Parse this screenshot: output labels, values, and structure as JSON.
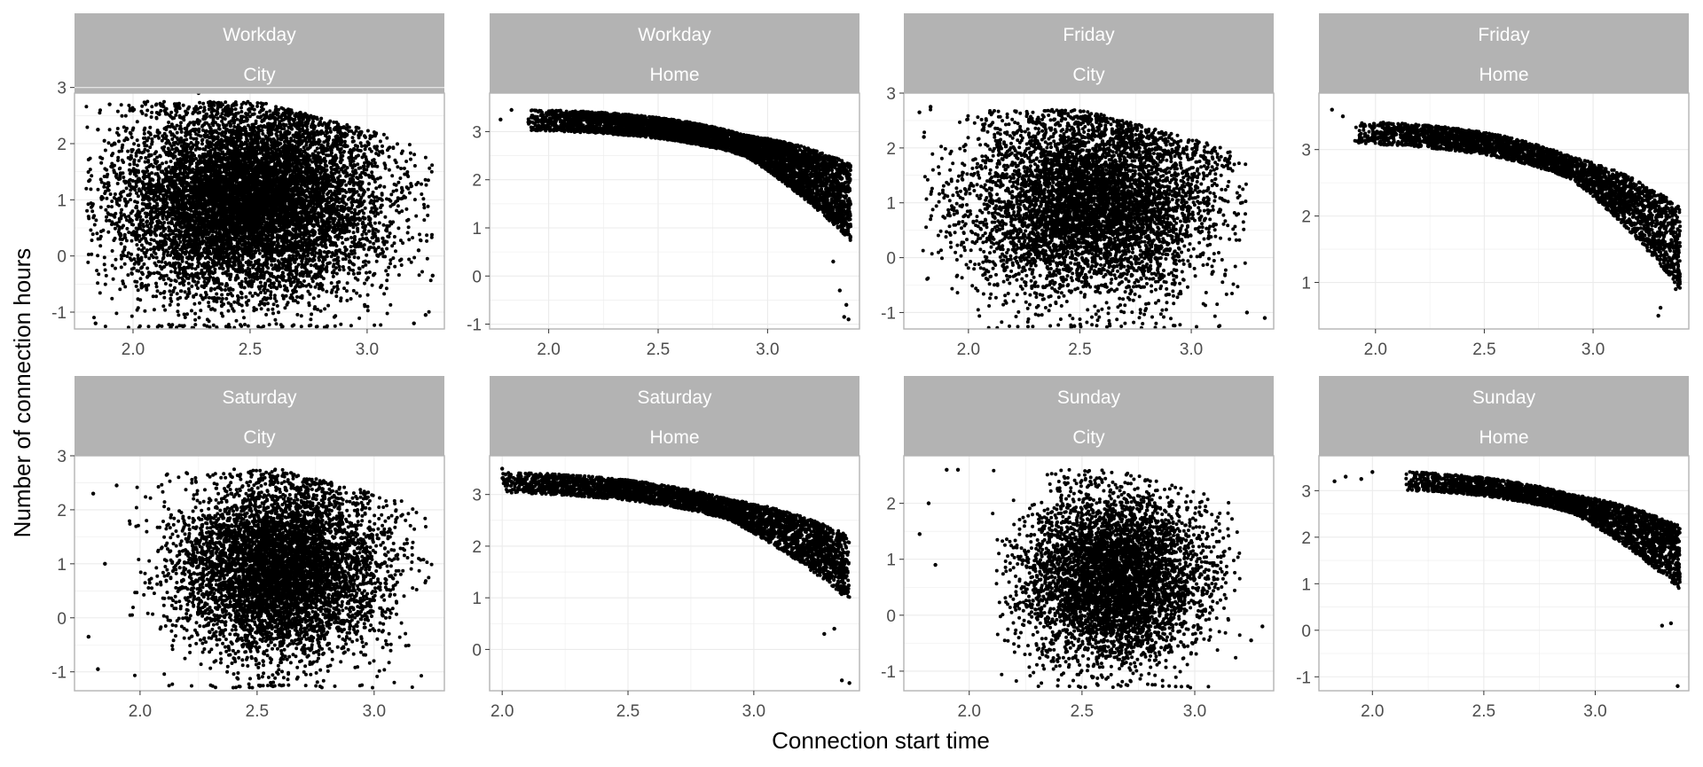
{
  "figure": {
    "ylabel": "Number of connection hours",
    "xlabel": "Connection start time"
  },
  "chart_data": {
    "type": "scatter",
    "xlabel": "Connection start time",
    "ylabel": "Number of connection hours",
    "grid": true,
    "legend": "none",
    "point_color": "#000000",
    "strip_color": "#b3b3b3",
    "strip_text_color": "#ffffff",
    "panel_border_color": "#b3b3b3",
    "grid_color": "#ebebeb",
    "panels": [
      {
        "strip": [
          "Workday",
          "City"
        ],
        "xlim": [
          1.75,
          3.33
        ],
        "ylim": [
          -1.3,
          2.9
        ],
        "xticks": [
          2.0,
          2.5,
          3.0
        ],
        "xtick_labels": [
          "2.0",
          "2.5",
          "3.0"
        ],
        "yticks": [
          -1,
          0,
          1,
          2,
          3
        ],
        "ytick_labels": [
          "-1",
          "0",
          "1",
          "2",
          "3"
        ],
        "cloud": {
          "shape": "dense",
          "xmin": 1.8,
          "xmax": 3.28,
          "xc": 2.5,
          "yc": 1.0,
          "sx": 0.28,
          "sy": 0.85,
          "ymin": -1.28,
          "ymax": 2.75,
          "n": 9000
        },
        "x": [
          1.84,
          2.28,
          3.25,
          3.2,
          1.85,
          1.9,
          3.22,
          3.28
        ],
        "y": [
          -1.2,
          2.9,
          -1.05,
          -1.2,
          2.25,
          2.7,
          0.1,
          -0.35
        ]
      },
      {
        "strip": [
          "Workday",
          "Home"
        ],
        "xlim": [
          1.73,
          3.42
        ],
        "ylim": [
          -1.1,
          3.8
        ],
        "xticks": [
          2.0,
          2.5,
          3.0
        ],
        "xtick_labels": [
          "2.0",
          "2.5",
          "3.0"
        ],
        "yticks": [
          -1,
          0,
          1,
          2,
          3
        ],
        "ytick_labels": [
          "-1",
          "0",
          "1",
          "2",
          "3"
        ],
        "cloud": {
          "shape": "curve",
          "xmin": 1.9,
          "xmax": 3.38,
          "curve": [
            3.3,
            -0.35,
            3.3
          ],
          "spread": 0.22,
          "tail": 1.2,
          "n": 5000
        },
        "x": [
          1.78,
          1.83,
          3.35,
          3.37,
          3.33,
          3.36,
          3.3
        ],
        "y": [
          3.25,
          3.45,
          -0.85,
          -0.9,
          -0.3,
          -0.6,
          0.3
        ]
      },
      {
        "strip": [
          "Friday",
          "City"
        ],
        "xlim": [
          1.71,
          3.37
        ],
        "ylim": [
          -1.3,
          3.0
        ],
        "xticks": [
          2.0,
          2.5,
          3.0
        ],
        "xtick_labels": [
          "2.0",
          "2.5",
          "3.0"
        ],
        "yticks": [
          -1,
          0,
          1,
          2,
          3
        ],
        "ytick_labels": [
          "-1",
          "0",
          "1",
          "2",
          "3"
        ],
        "cloud": {
          "shape": "dense",
          "xmin": 1.78,
          "xmax": 3.25,
          "xc": 2.55,
          "yc": 1.0,
          "sx": 0.28,
          "sy": 0.85,
          "ymin": -1.28,
          "ymax": 2.7,
          "n": 6000
        },
        "x": [
          1.78,
          1.83,
          3.33,
          3.25,
          1.8
        ],
        "y": [
          2.65,
          2.75,
          -1.1,
          -1.0,
          2.2
        ]
      },
      {
        "strip": [
          "Friday",
          "Home"
        ],
        "xlim": [
          1.74,
          3.44
        ],
        "ylim": [
          0.3,
          3.85
        ],
        "xticks": [
          2.0,
          2.5,
          3.0
        ],
        "xtick_labels": [
          "2.0",
          "2.5",
          "3.0"
        ],
        "yticks": [
          1,
          2,
          3
        ],
        "ytick_labels": [
          "1",
          "2",
          "3"
        ],
        "cloud": {
          "shape": "curve",
          "xmin": 1.9,
          "xmax": 3.4,
          "curve": [
            3.3,
            -0.35,
            3.3
          ],
          "spread": 0.17,
          "tail": 0.9,
          "n": 3200
        },
        "x": [
          1.8,
          1.85,
          3.3,
          3.31,
          3.38,
          3.39
        ],
        "y": [
          3.6,
          3.5,
          0.5,
          0.62,
          0.9,
          1.2
        ]
      },
      {
        "strip": [
          "Saturday",
          "City"
        ],
        "xlim": [
          1.72,
          3.3
        ],
        "ylim": [
          -1.35,
          3.0
        ],
        "xticks": [
          2.0,
          2.5,
          3.0
        ],
        "xtick_labels": [
          "2.0",
          "2.5",
          "3.0"
        ],
        "yticks": [
          -1,
          0,
          1,
          2,
          3
        ],
        "ytick_labels": [
          "-1",
          "0",
          "1",
          "2",
          "3"
        ],
        "cloud": {
          "shape": "dense",
          "xmin": 1.95,
          "xmax": 3.25,
          "xc": 2.6,
          "yc": 0.9,
          "sx": 0.22,
          "sy": 0.8,
          "ymin": -1.3,
          "ymax": 2.75,
          "n": 6000
        },
        "x": [
          1.78,
          1.82,
          1.85,
          1.8,
          1.9
        ],
        "y": [
          -0.35,
          -0.95,
          1.0,
          2.3,
          2.45
        ]
      },
      {
        "strip": [
          "Saturday",
          "Home"
        ],
        "xlim": [
          1.95,
          3.42
        ],
        "ylim": [
          -0.8,
          3.75
        ],
        "xticks": [
          2.0,
          2.5,
          3.0
        ],
        "xtick_labels": [
          "2.0",
          "2.5",
          "3.0"
        ],
        "yticks": [
          0,
          1,
          2,
          3
        ],
        "ytick_labels": [
          "0",
          "1",
          "2",
          "3"
        ],
        "cloud": {
          "shape": "curve",
          "xmin": 2.0,
          "xmax": 3.38,
          "curve": [
            3.3,
            -0.35,
            3.3
          ],
          "spread": 0.2,
          "tail": 0.9,
          "n": 3600
        },
        "x": [
          2.0,
          3.35,
          3.38,
          3.28,
          3.32
        ],
        "y": [
          3.5,
          -0.6,
          -0.65,
          0.3,
          0.4
        ]
      },
      {
        "strip": [
          "Sunday",
          "City"
        ],
        "xlim": [
          1.71,
          3.35
        ],
        "ylim": [
          -1.35,
          2.85
        ],
        "xticks": [
          2.0,
          2.5,
          3.0
        ],
        "xtick_labels": [
          "2.0",
          "2.5",
          "3.0"
        ],
        "yticks": [
          -1,
          0,
          1,
          2
        ],
        "ytick_labels": [
          "-1",
          "0",
          "1",
          "2"
        ],
        "cloud": {
          "shape": "dense",
          "xmin": 2.1,
          "xmax": 3.2,
          "xc": 2.65,
          "yc": 0.65,
          "sx": 0.2,
          "sy": 0.75,
          "ymin": -1.3,
          "ymax": 2.6,
          "n": 5000
        },
        "x": [
          1.78,
          1.85,
          1.9,
          1.95,
          3.3,
          3.25,
          1.82
        ],
        "y": [
          1.45,
          0.9,
          2.6,
          2.6,
          -0.2,
          -0.45,
          2.0
        ]
      },
      {
        "strip": [
          "Sunday",
          "Home"
        ],
        "xlim": [
          1.76,
          3.42
        ],
        "ylim": [
          -1.3,
          3.75
        ],
        "xticks": [
          2.0,
          2.5,
          3.0
        ],
        "xtick_labels": [
          "2.0",
          "2.5",
          "3.0"
        ],
        "yticks": [
          -1,
          0,
          1,
          2,
          3
        ],
        "ytick_labels": [
          "-1",
          "0",
          "1",
          "2",
          "3"
        ],
        "cloud": {
          "shape": "curve",
          "xmin": 2.15,
          "xmax": 3.38,
          "curve": [
            3.3,
            -0.35,
            3.3
          ],
          "spread": 0.2,
          "tail": 1.0,
          "n": 3000
        },
        "x": [
          1.83,
          1.88,
          1.95,
          2.0,
          3.37,
          3.3,
          3.34
        ],
        "y": [
          3.2,
          3.3,
          3.25,
          3.4,
          -1.2,
          0.1,
          0.15
        ]
      }
    ]
  }
}
